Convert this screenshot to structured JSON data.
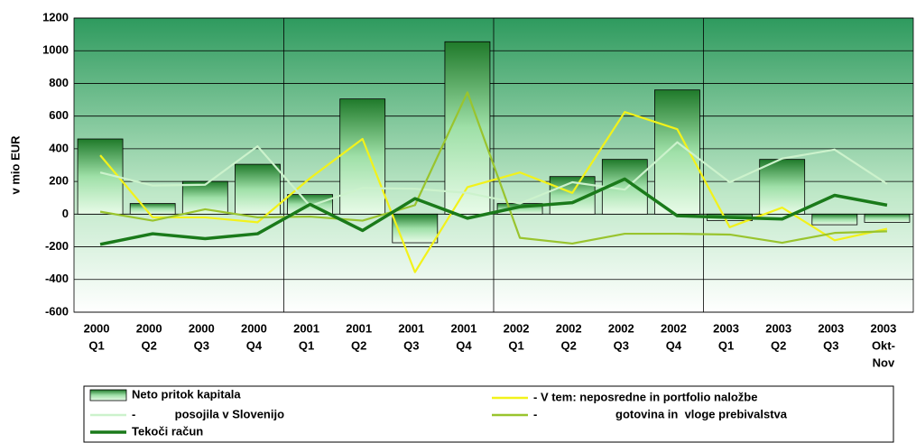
{
  "chart_data": {
    "type": "bar",
    "y_label": "v mio EUR",
    "categories": [
      [
        "2000",
        "Q1"
      ],
      [
        "2000",
        "Q2"
      ],
      [
        "2000",
        "Q3"
      ],
      [
        "2000",
        "Q4"
      ],
      [
        "2001",
        "Q1"
      ],
      [
        "2001",
        "Q2"
      ],
      [
        "2001",
        "Q3"
      ],
      [
        "2001",
        "Q4"
      ],
      [
        "2002",
        "Q1"
      ],
      [
        "2002",
        "Q2"
      ],
      [
        "2002",
        "Q3"
      ],
      [
        "2002",
        "Q4"
      ],
      [
        "2003",
        "Q1"
      ],
      [
        "2003",
        "Q2"
      ],
      [
        "2003",
        "Q3"
      ],
      [
        "2003",
        "Okt-",
        "Nov"
      ]
    ],
    "ylim": [
      -600,
      1200
    ],
    "yticks": [
      -600,
      -400,
      -200,
      0,
      200,
      400,
      600,
      800,
      1000,
      1200
    ],
    "grid": true,
    "series": [
      {
        "name": "Neto pritok kapitala",
        "type": "bar",
        "color": "#2e8b3a",
        "values": [
          460,
          65,
          200,
          305,
          120,
          705,
          -175,
          1055,
          65,
          230,
          335,
          760,
          -40,
          335,
          -65,
          -50
        ]
      },
      {
        "name": "- V tem: neposredne in portfolio naložbe",
        "type": "line",
        "color": "#f2f21a",
        "values": [
          360,
          -20,
          -20,
          -50,
          220,
          460,
          -355,
          165,
          255,
          130,
          625,
          520,
          -80,
          40,
          -160,
          -90
        ]
      },
      {
        "name": "-            posojila v Slovenijo",
        "type": "line",
        "color": "#ccf2cc",
        "values": [
          255,
          175,
          180,
          415,
          50,
          160,
          155,
          130,
          65,
          195,
          150,
          440,
          195,
          340,
          395,
          185
        ]
      },
      {
        "name": "-                        gotovina in  vloge prebivalstva",
        "type": "line",
        "color": "#99c42e",
        "values": [
          15,
          -40,
          30,
          -20,
          -15,
          -40,
          55,
          745,
          -145,
          -180,
          -120,
          -120,
          -125,
          -175,
          -115,
          -105
        ]
      },
      {
        "name": "Tekoči račun",
        "type": "line",
        "color": "#1a7a1a",
        "values": [
          -185,
          -120,
          -150,
          -120,
          60,
          -100,
          95,
          -25,
          45,
          70,
          215,
          -10,
          -20,
          -30,
          115,
          55
        ]
      }
    ]
  }
}
